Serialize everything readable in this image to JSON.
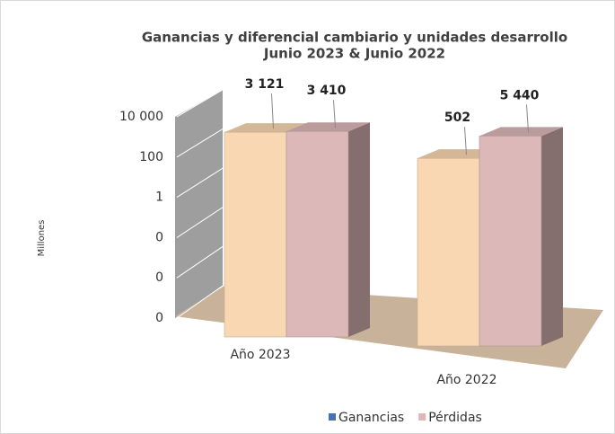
{
  "chart_data": {
    "type": "bar3d",
    "title": "Ganancias y diferencial cambiario y unidades desarrollo",
    "subtitle": "Junio 2023 & Junio 2022",
    "y_label": "Millones",
    "categories": [
      "Año 2023",
      "Año 2022"
    ],
    "series": [
      {
        "name": "Ganancias",
        "color": "#f8d7b2",
        "legend_color": "#4a6fb5",
        "values": [
          3121,
          502
        ],
        "value_labels": [
          "3 121",
          "502"
        ]
      },
      {
        "name": "Pérdidas",
        "color": "#dcb8b8",
        "legend_color": "#dcb8b8",
        "values": [
          3410,
          5440
        ],
        "value_labels": [
          "3 410",
          "5 440"
        ]
      }
    ],
    "log_scale": true,
    "ylim": [
      1e-06,
      10000
    ],
    "yticks": [
      {
        "value": 1e-06,
        "label": "0"
      },
      {
        "value": 0.0001,
        "label": "0"
      },
      {
        "value": 0.01,
        "label": "0"
      },
      1,
      100,
      {
        "value": 10000,
        "label": "10 000"
      }
    ],
    "grid": true,
    "legend": "bottom"
  }
}
